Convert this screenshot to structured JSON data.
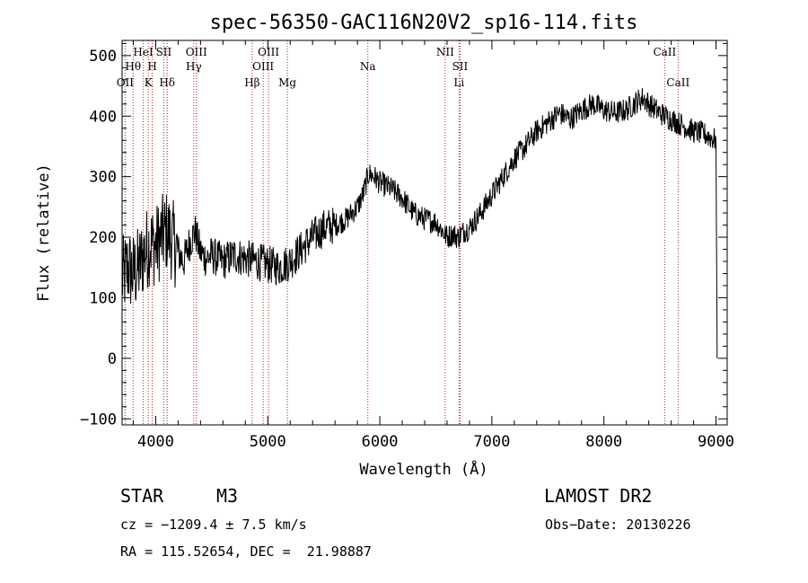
{
  "chart_data": {
    "type": "line",
    "title": "spec-56350-GAC116N20V2_sp16-114.fits",
    "xlabel": "Wavelength (Å)",
    "ylabel": "Flux (relative)",
    "xlim": [
      3700,
      9100
    ],
    "ylim": [
      -110,
      525
    ],
    "xticks": [
      4000,
      5000,
      6000,
      7000,
      8000,
      9000
    ],
    "yticks": [
      -100,
      0,
      100,
      200,
      300,
      400,
      500
    ],
    "grid": false,
    "series": [
      {
        "color": "#000000",
        "x": [
          3700,
          3750,
          3800,
          3850,
          3900,
          3950,
          4000,
          4050,
          4100,
          4150,
          4200,
          4250,
          4300,
          4350,
          4400,
          4450,
          4500,
          4600,
          4700,
          4800,
          4900,
          5000,
          5100,
          5200,
          5300,
          5400,
          5500,
          5600,
          5700,
          5800,
          5850,
          5900,
          5950,
          6000,
          6050,
          6100,
          6200,
          6300,
          6400,
          6500,
          6560,
          6600,
          6650,
          6700,
          6750,
          6800,
          6900,
          7000,
          7100,
          7200,
          7300,
          7400,
          7500,
          7600,
          7650,
          7700,
          7800,
          7900,
          8000,
          8100,
          8200,
          8300,
          8350,
          8400,
          8500,
          8600,
          8700,
          8800,
          8900,
          8950,
          9000,
          9010
        ],
        "y": [
          130,
          150,
          140,
          150,
          175,
          190,
          185,
          200,
          210,
          195,
          175,
          160,
          190,
          210,
          175,
          165,
          170,
          160,
          170,
          165,
          160,
          155,
          150,
          160,
          180,
          200,
          215,
          220,
          230,
          250,
          270,
          305,
          300,
          290,
          285,
          280,
          265,
          240,
          230,
          225,
          210,
          200,
          205,
          200,
          210,
          215,
          240,
          270,
          300,
          330,
          350,
          375,
          390,
          405,
          400,
          395,
          410,
          420,
          410,
          405,
          410,
          425,
          430,
          420,
          405,
          395,
          385,
          375,
          370,
          365,
          360,
          0
        ]
      }
    ],
    "emission_lines": [
      {
        "wavelength": 3727,
        "label": "OII",
        "row": 3
      },
      {
        "wavelength": 3798,
        "label": "Hθ",
        "row": 2
      },
      {
        "wavelength": 3889,
        "label": "HeI",
        "row": 1
      },
      {
        "wavelength": 3934,
        "label": "K",
        "row": 3
      },
      {
        "wavelength": 3969,
        "label": "H",
        "row": 2
      },
      {
        "wavelength": 4072,
        "label": "SII",
        "row": 1
      },
      {
        "wavelength": 4102,
        "label": "Hδ",
        "row": 3
      },
      {
        "wavelength": 4340,
        "label": "Hγ",
        "row": 2
      },
      {
        "wavelength": 4363,
        "label": "OIII",
        "row": 1
      },
      {
        "wavelength": 4861,
        "label": "Hβ",
        "row": 3
      },
      {
        "wavelength": 4959,
        "label": "OIII",
        "row": 2
      },
      {
        "wavelength": 5007,
        "label": "OIII",
        "row": 1
      },
      {
        "wavelength": 5175,
        "label": "Mg",
        "row": 3
      },
      {
        "wavelength": 5893,
        "label": "Na",
        "row": 2
      },
      {
        "wavelength": 6583,
        "label": "NII",
        "row": 1
      },
      {
        "wavelength": 6707,
        "label": "Li",
        "row": 3
      },
      {
        "wavelength": 6716,
        "label": "SII",
        "row": 2
      },
      {
        "wavelength": 8542,
        "label": "CaII",
        "row": 1
      },
      {
        "wavelength": 8662,
        "label": "CaII",
        "row": 3
      }
    ]
  },
  "info": {
    "object_class": "STAR",
    "subclass": "M3",
    "survey": "LAMOST DR2",
    "cz": "cz = −1209.4 ± 7.5 km/s",
    "obs_date": "Obs−Date: 20130226",
    "coords": "RA = 115.52654, DEC =  21.98887"
  }
}
